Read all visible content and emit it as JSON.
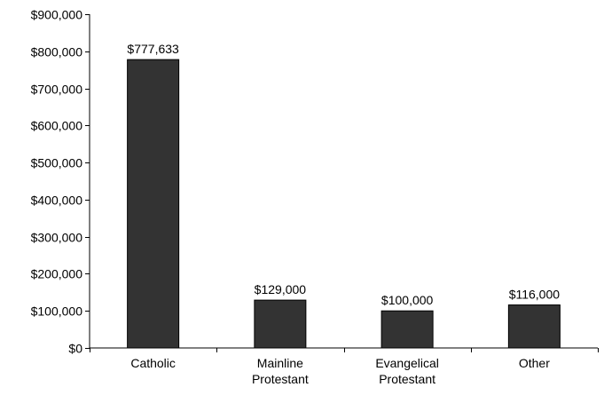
{
  "chart_data": {
    "type": "bar",
    "categories": [
      "Catholic",
      "Mainline Protestant",
      "Evangelical Protestant",
      "Other"
    ],
    "category_lines": [
      [
        "Catholic"
      ],
      [
        "Mainline",
        "Protestant"
      ],
      [
        "Evangelical",
        "Protestant"
      ],
      [
        "Other"
      ]
    ],
    "values": [
      777633,
      129000,
      100000,
      116000
    ],
    "data_labels": [
      "$777,633",
      "$129,000",
      "$100,000",
      "$116,000"
    ],
    "ylim": [
      0,
      900000
    ],
    "yticks": [
      0,
      100000,
      200000,
      300000,
      400000,
      500000,
      600000,
      700000,
      800000,
      900000
    ],
    "ytick_labels": [
      "$0",
      "$100,000",
      "$200,000",
      "$300,000",
      "$400,000",
      "$500,000",
      "$600,000",
      "$700,000",
      "$800,000",
      "$900,000"
    ],
    "title": "",
    "xlabel": "",
    "ylabel": "",
    "grid": false,
    "legend": "none",
    "colors": {
      "bar": "#333333",
      "axis": "#000000",
      "text": "#000000"
    }
  }
}
